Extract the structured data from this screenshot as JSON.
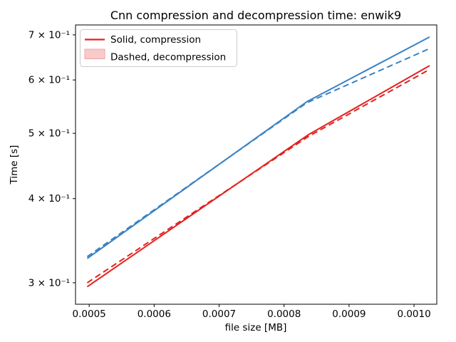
{
  "figure": {
    "title": "Cnn compression and decompression time: enwik9",
    "xlabel": "file size [MB]",
    "ylabel": "Time [s]"
  },
  "legend": {
    "items": [
      {
        "label": "Solid, compression",
        "swatch": "red-solid-line"
      },
      {
        "label": "Dashed, decompression",
        "swatch": "light-red-patch"
      }
    ]
  },
  "colors": {
    "blue": "#3b82c4",
    "red": "#e3211e",
    "patch_fill": "#f9caca",
    "patch_edge": "#f0a5a5",
    "spine": "#000000",
    "legend_border": "#cccccc"
  },
  "chart_data": {
    "type": "line",
    "title": "Cnn compression and decompression time: enwik9",
    "xlabel": "file size [MB]",
    "ylabel": "Time [s]",
    "xscale": "linear",
    "yscale": "log",
    "grid": false,
    "legend_position": "upper left",
    "xlim": [
      0.000479,
      0.001035
    ],
    "ylim": [
      0.2788,
      0.7241
    ],
    "x_ticks": {
      "values": [
        0.0005,
        0.0006,
        0.0007,
        0.0008,
        0.0009,
        0.001
      ],
      "labels": [
        "0.0005",
        "0.0006",
        "0.0007",
        "0.0008",
        "0.0009",
        "0.0010"
      ]
    },
    "y_ticks": {
      "values": [
        0.7,
        0.6,
        0.5,
        0.4,
        0.3
      ],
      "labels": [
        "7 × 10⁻¹",
        "6 × 10⁻¹",
        "5 × 10⁻¹",
        "4 × 10⁻¹",
        "3 × 10⁻¹"
      ]
    },
    "series": [
      {
        "name": "blue-compression-solid",
        "role": "compression",
        "color": "blue",
        "line_style": "solid",
        "x": [
          0.000497,
          0.000835,
          0.001024
        ],
        "y": [
          0.326,
          0.557,
          0.695
        ]
      },
      {
        "name": "blue-decompression-dashed",
        "role": "decompression",
        "color": "blue",
        "line_style": "dashed",
        "x": [
          0.000497,
          0.000835,
          0.001024
        ],
        "y": [
          0.328,
          0.555,
          0.668
        ]
      },
      {
        "name": "red-compression-solid",
        "role": "compression",
        "color": "red",
        "line_style": "solid",
        "x": [
          0.000497,
          0.000838,
          0.001024
        ],
        "y": [
          0.296,
          0.498,
          0.63
        ]
      },
      {
        "name": "red-decompression-dashed",
        "role": "decompression",
        "color": "red",
        "line_style": "dashed",
        "x": [
          0.000497,
          0.000838,
          0.001024
        ],
        "y": [
          0.3,
          0.495,
          0.622
        ]
      }
    ]
  }
}
